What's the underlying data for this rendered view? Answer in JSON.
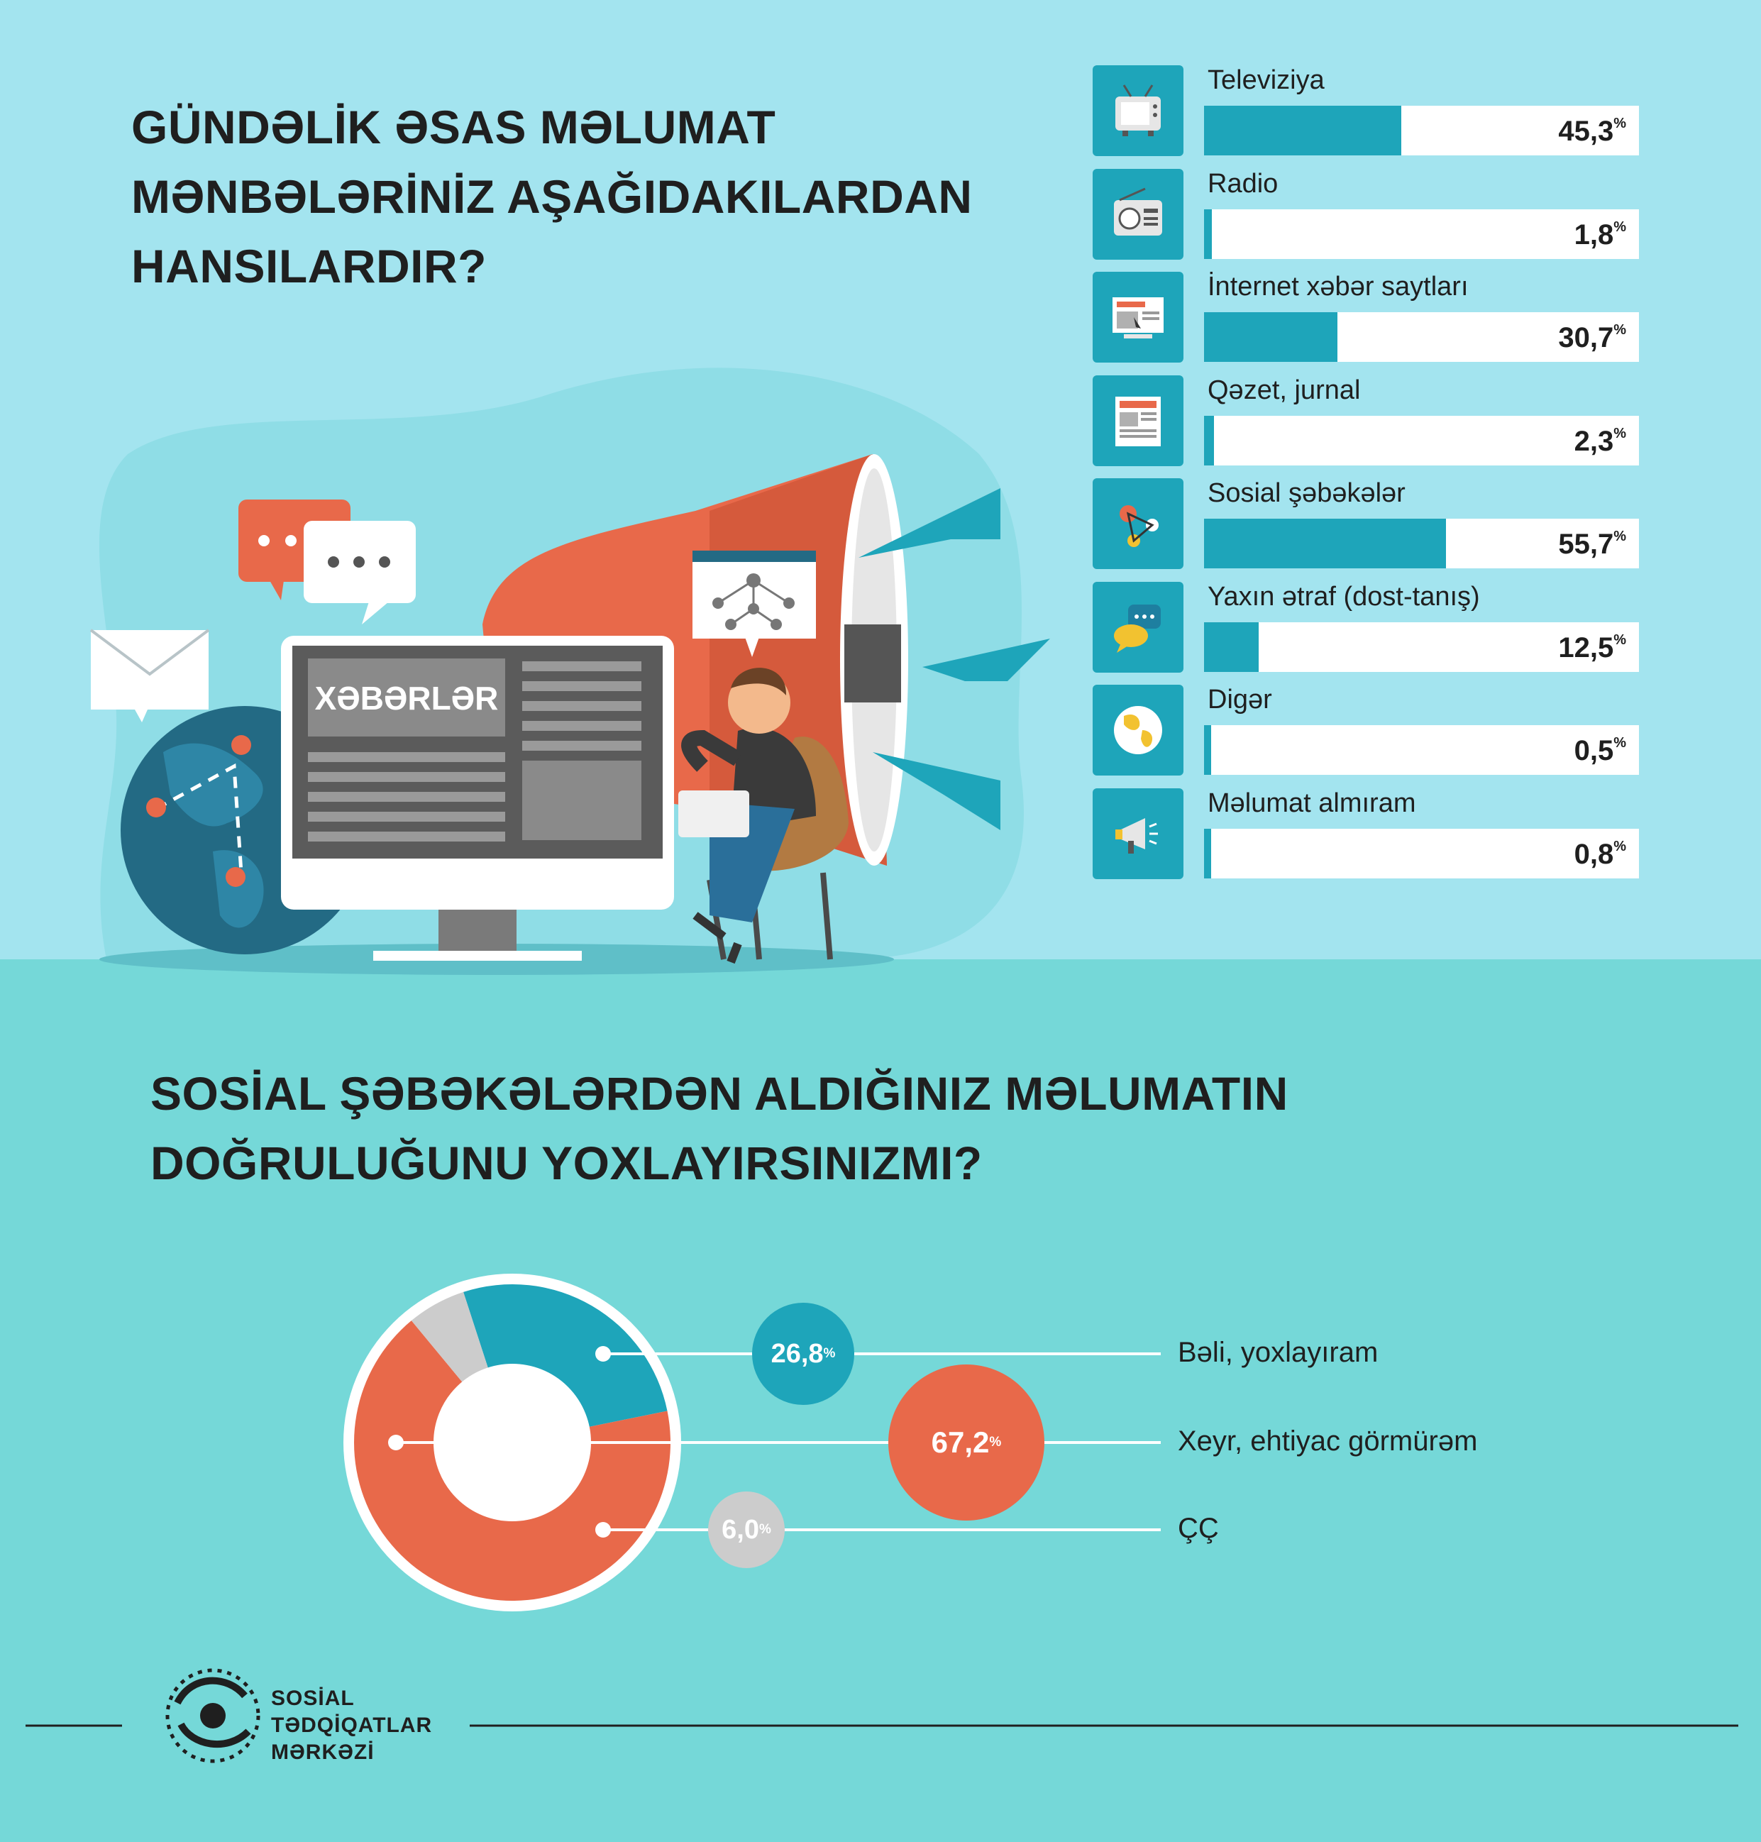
{
  "title_top": [
    "GÜNDƏLİK ƏSAS MƏLUMAT",
    "MƏNBƏLƏRİNİZ AŞAĞIDAKILARDAN",
    "HANSILARDIR?"
  ],
  "illustration": {
    "monitor_heading": "XƏBƏRLƏR",
    "icon_heading": "XƏBƏRLƏR"
  },
  "title_bottom": [
    "SOSİAL ŞƏBƏKƏLƏRDƏN ALDIĞINIZ MƏLUMATIN",
    "DOĞRULUĞUNU YOXLAYIRSINIZMI?"
  ],
  "colors": {
    "teal": "#1ea5ba",
    "orange": "#e8694a",
    "grey": "#cccccc",
    "top_bg": "#a3e4ef",
    "bottom_bg": "#75d8d8"
  },
  "chart_data": [
    {
      "type": "bar",
      "orientation": "horizontal",
      "unit": "%",
      "xlim": [
        0,
        100
      ],
      "categories": [
        "Televiziya",
        "Radio",
        "İnternet xəbər saytları",
        "Qəzet, jurnal",
        "Sosial şəbəkələr",
        "Yaxın ətraf (dost-tanış)",
        "Digər",
        "Məlumat almıram"
      ],
      "values": [
        45.3,
        1.8,
        30.7,
        2.3,
        55.7,
        12.5,
        0.5,
        0.8
      ],
      "value_labels": [
        "45,3",
        "1,8",
        "30,7",
        "2,3",
        "55,7",
        "12,5",
        "0,5",
        "0,8"
      ],
      "icons": [
        "tv-icon",
        "radio-icon",
        "news-website-icon",
        "newspaper-icon",
        "social-network-icon",
        "chat-bubbles-icon",
        "globe-icon",
        "megaphone-icon"
      ]
    },
    {
      "type": "pie",
      "donut": true,
      "unit": "%",
      "categories": [
        "Bəli, yoxlayıram",
        "Xeyr, ehtiyac görmürəm",
        "ÇÇ"
      ],
      "values": [
        26.8,
        67.2,
        6.0
      ],
      "value_labels": [
        "26,8",
        "67,2",
        "6,0"
      ],
      "colors": [
        "#1ea5ba",
        "#e8694a",
        "#cccccc"
      ]
    }
  ],
  "percent_sign": "%",
  "footer": {
    "logo_lines": [
      "SOSİAL",
      "TƏDQİQATLAR",
      "MƏRKƏZİ"
    ]
  }
}
